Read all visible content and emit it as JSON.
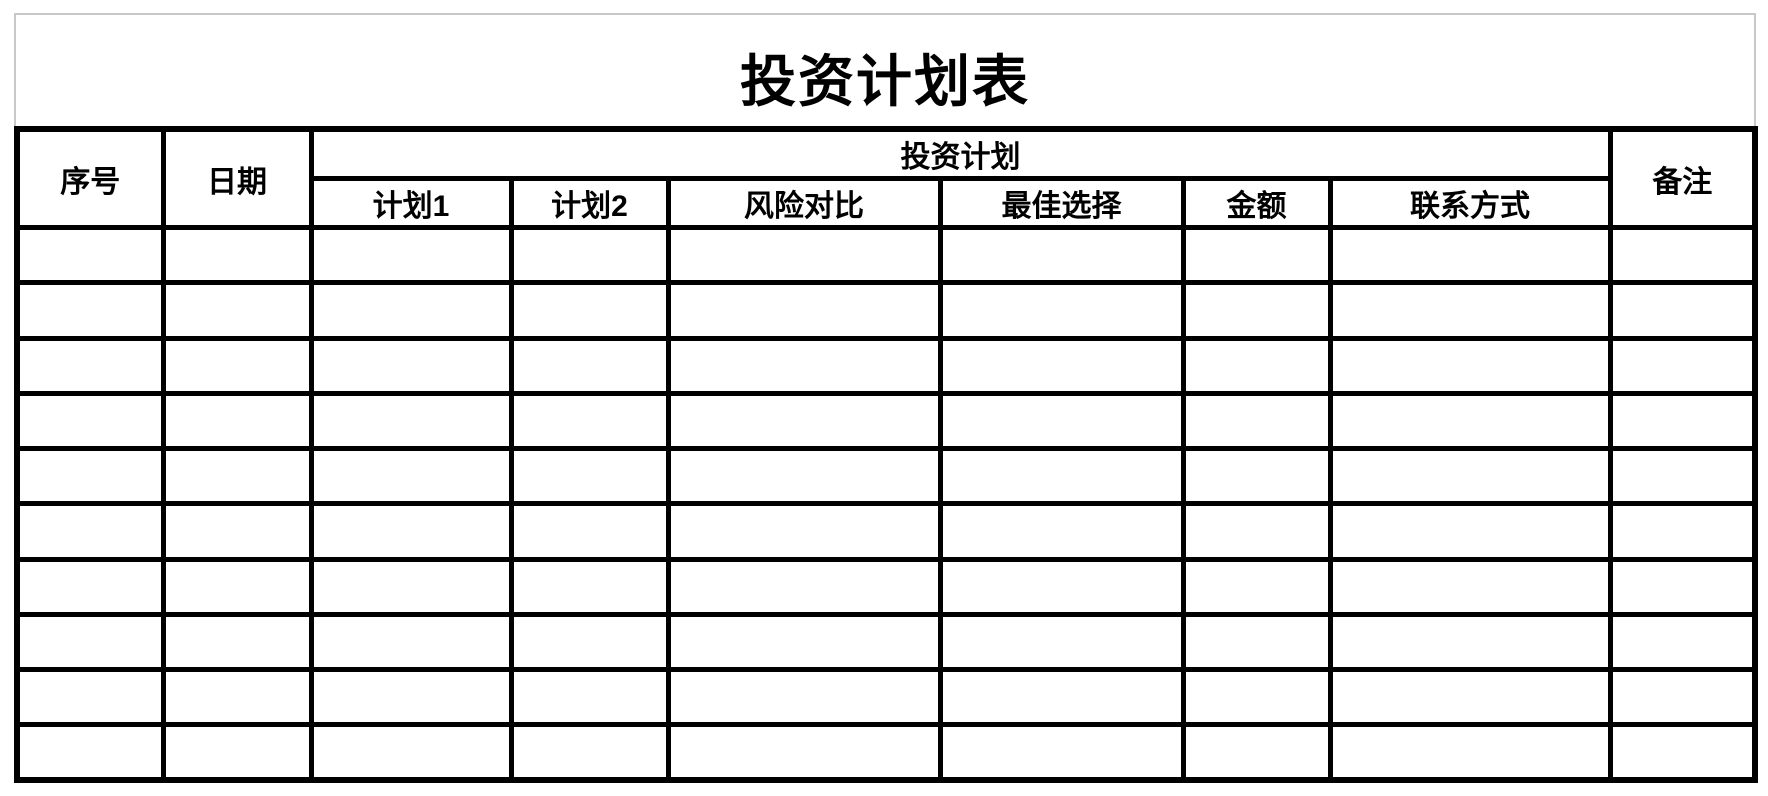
{
  "page": {
    "title": "投资计划表"
  },
  "table": {
    "headers": {
      "serial": "序号",
      "date": "日期",
      "plan_group": "投资计划",
      "remarks": "备注",
      "sub": [
        "计划1",
        "计划2",
        "风险对比",
        "最佳选择",
        "金额",
        "联系方式"
      ]
    },
    "empty_rows": 10,
    "column_count": 9
  },
  "colors": {
    "border": "#000000",
    "title_frame": "#c8c8c8",
    "background": "#ffffff",
    "text": "#000000"
  }
}
